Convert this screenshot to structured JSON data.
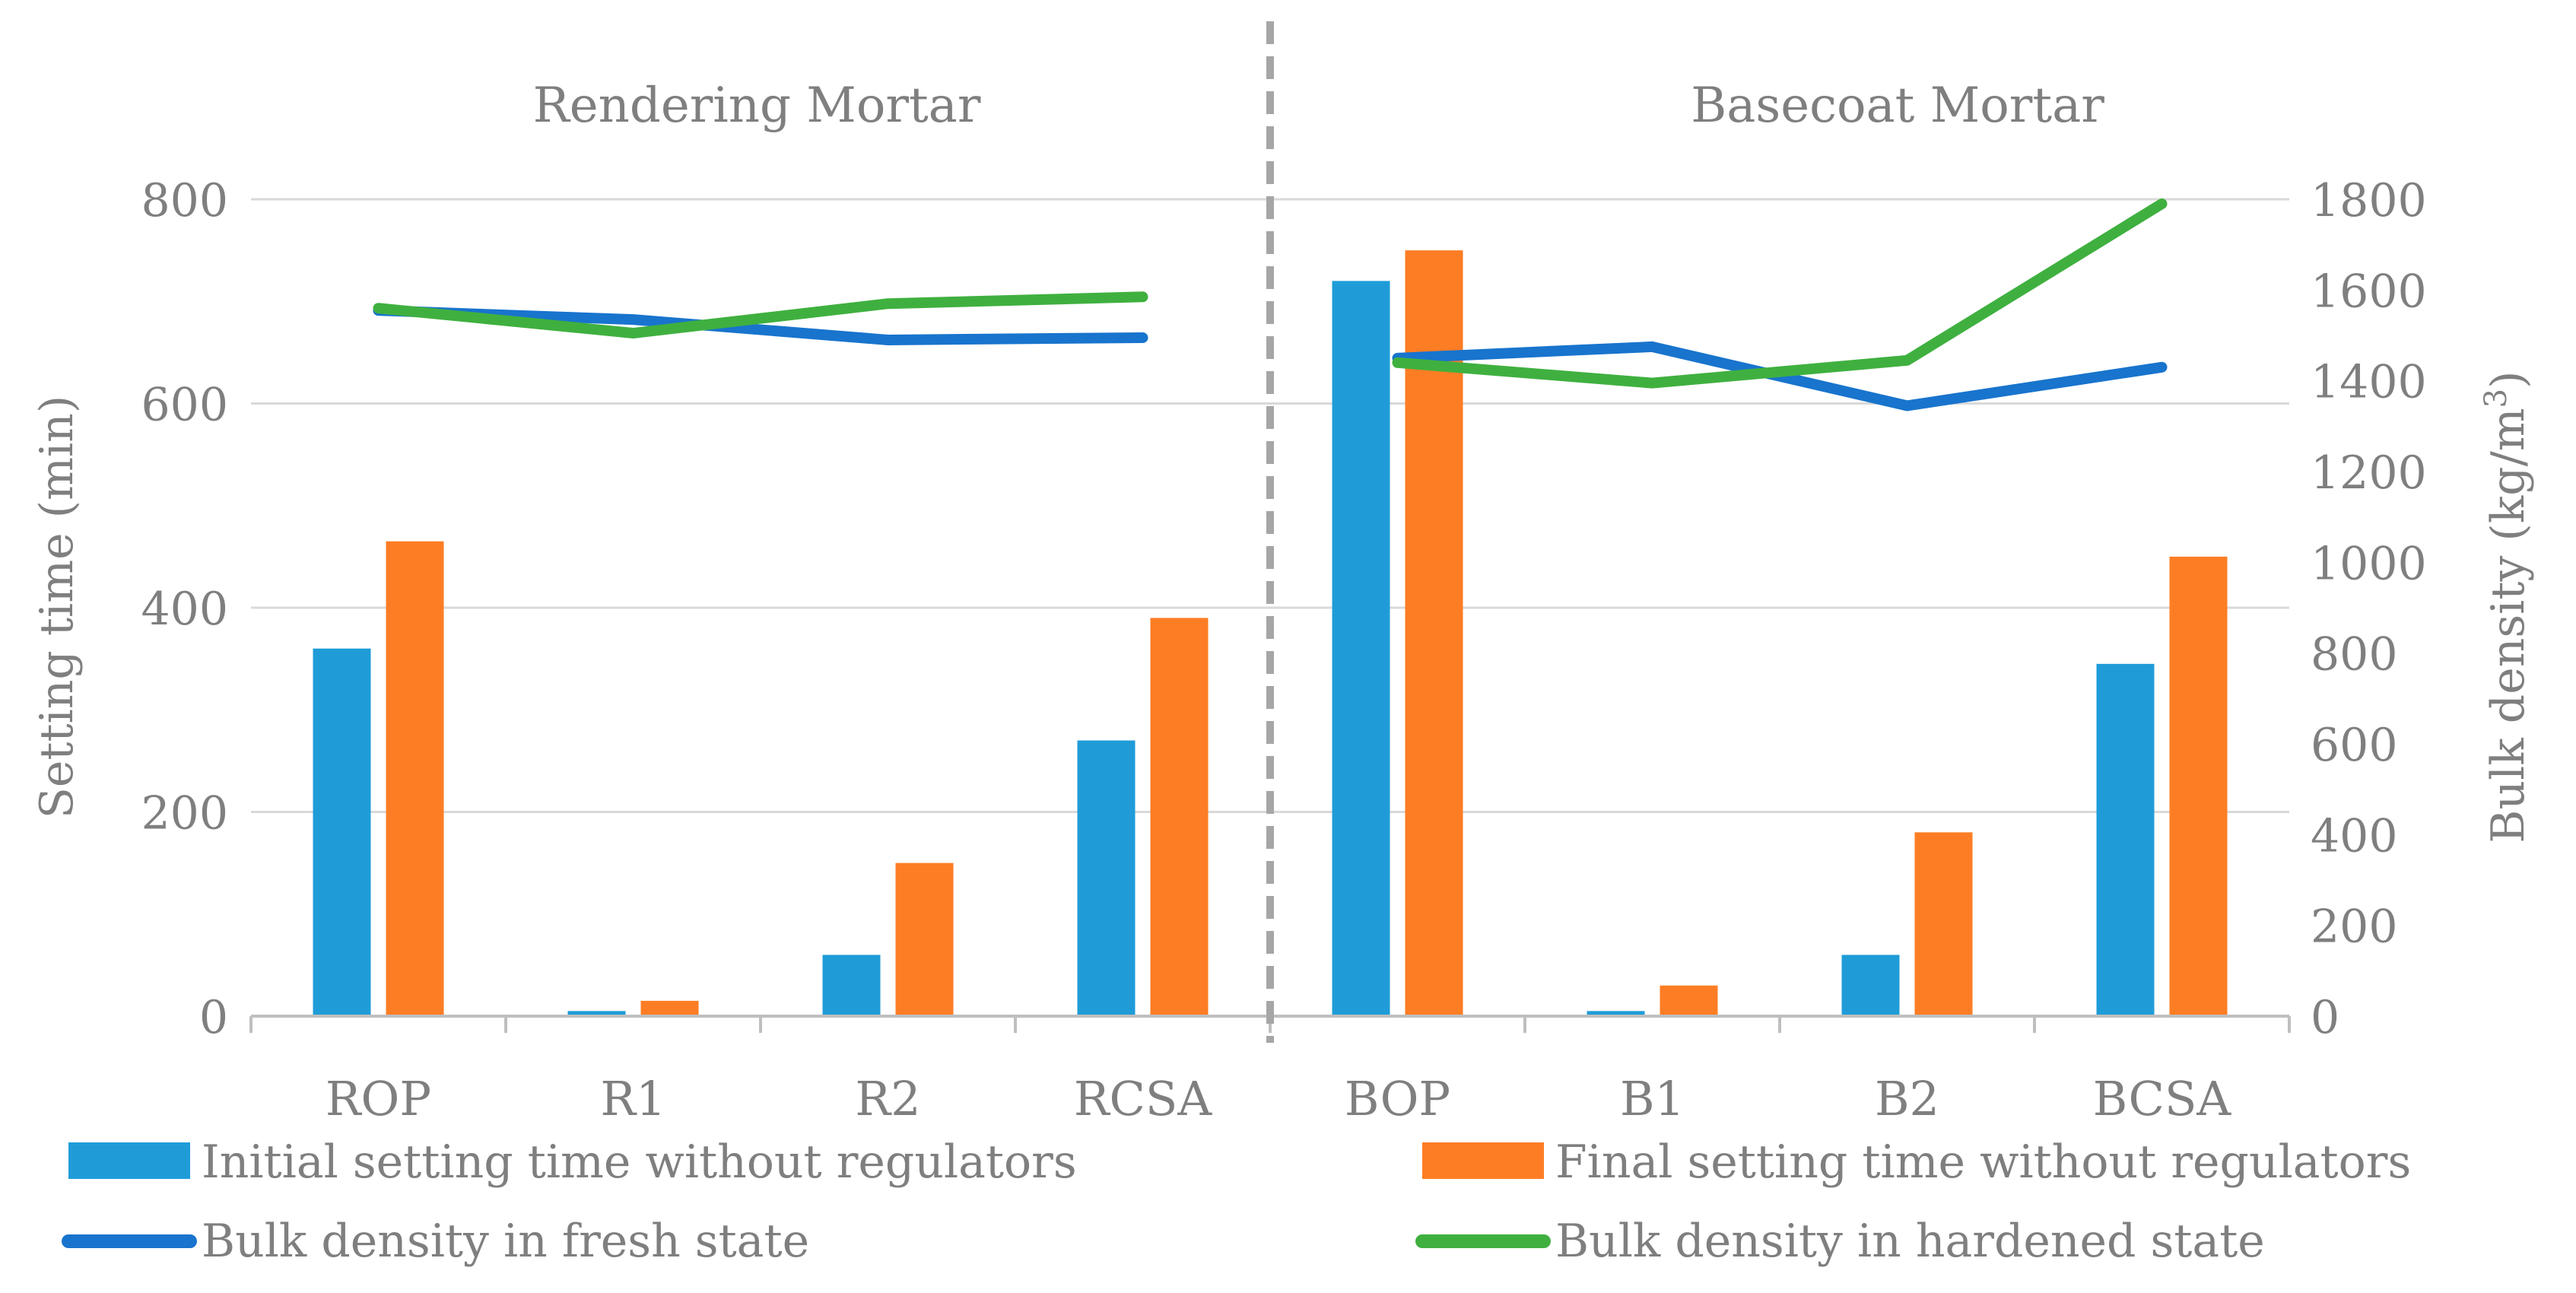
{
  "chart_data": {
    "type": "bar+line",
    "categories": [
      "ROP",
      "R1",
      "R2",
      "RCSA",
      "BOP",
      "B1",
      "B2",
      "BCSA"
    ],
    "groups": [
      {
        "label": "Rendering Mortar",
        "categories": [
          "ROP",
          "R1",
          "R2",
          "RCSA"
        ]
      },
      {
        "label": "Basecoat Mortar",
        "categories": [
          "BOP",
          "B1",
          "B2",
          "BCSA"
        ]
      }
    ],
    "bar_series": [
      {
        "name": "Initial setting time without regulators",
        "color": "#1f9cd8",
        "values": [
          360,
          5,
          60,
          270,
          720,
          5,
          60,
          345
        ]
      },
      {
        "name": "Final setting time without  regulators",
        "color": "#fd7d24",
        "values": [
          465,
          15,
          150,
          390,
          750,
          30,
          180,
          450
        ]
      }
    ],
    "line_series": [
      {
        "name": "Bulk density in fresh state",
        "color": "#1874cd",
        "axis": "right",
        "segments": [
          [
            1555,
            1535,
            1490,
            1495
          ],
          [
            1450,
            1475,
            1345,
            1430
          ]
        ]
      },
      {
        "name": "Bulk density  in hardened state",
        "color": "#3fb03f",
        "axis": "right",
        "segments": [
          [
            1560,
            1505,
            1570,
            1585
          ],
          [
            1440,
            1395,
            1445,
            1790
          ]
        ]
      }
    ],
    "y_left": {
      "label": "Setting time (min)",
      "min": 0,
      "max": 800,
      "ticks": [
        0,
        200,
        400,
        600,
        800
      ]
    },
    "y_right": {
      "label": "Bulk density (kg/m",
      "label_sup": "3",
      "label_end": ")",
      "min": 0,
      "max": 1800,
      "ticks": [
        0,
        200,
        400,
        600,
        800,
        1000,
        1200,
        1400,
        1600,
        1800
      ]
    },
    "separator_color": "#a6a6a6",
    "grid": true,
    "legend_position": "bottom"
  }
}
